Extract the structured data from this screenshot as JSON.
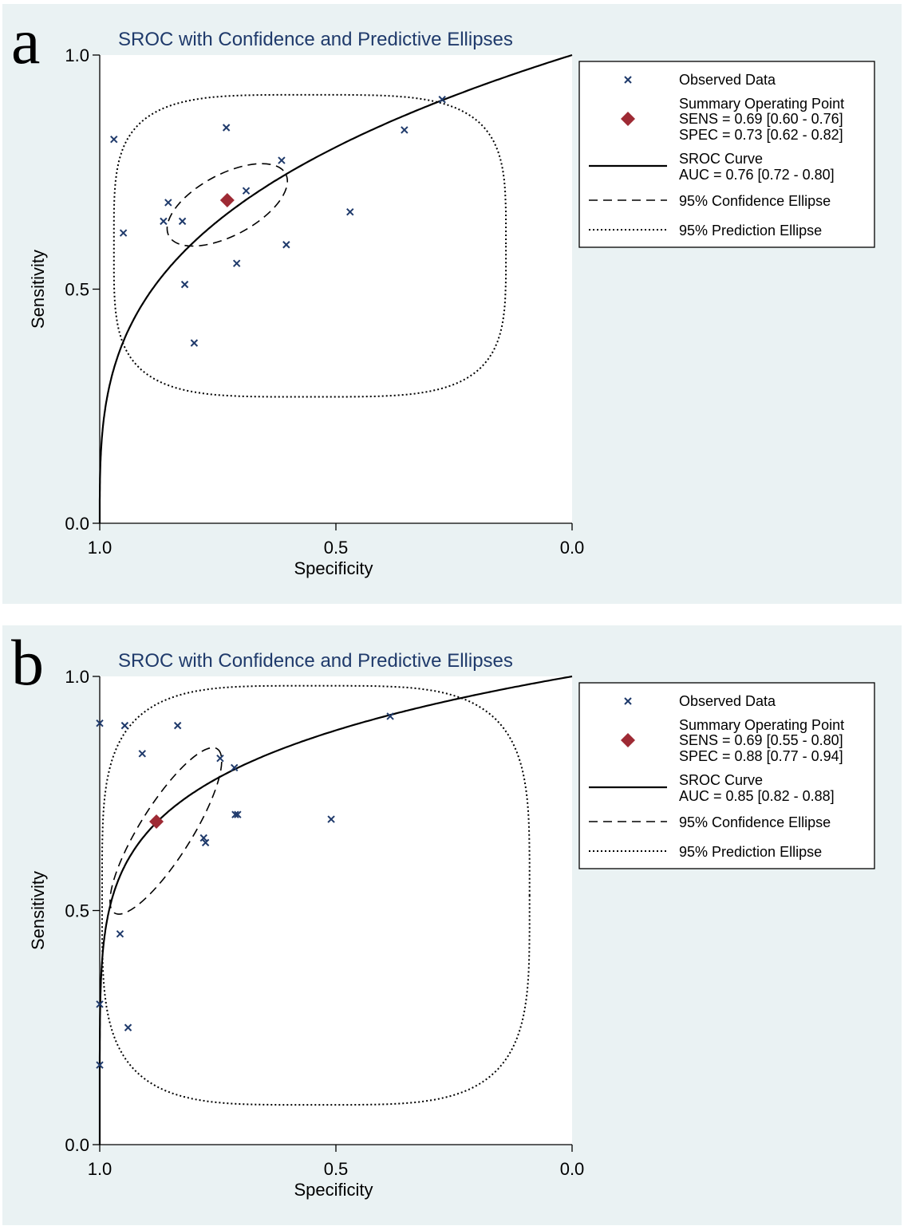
{
  "chart_data": [
    {
      "panel": "a",
      "type": "scatter",
      "title": "SROC with Confidence and Predictive Ellipses",
      "xlabel": "Specificity",
      "ylabel": "Sensitivity",
      "xlim": [
        1.0,
        0.0
      ],
      "ylim": [
        0.0,
        1.0
      ],
      "x_reversed": true,
      "xticks": [
        "1.0",
        "0.5",
        "0.0"
      ],
      "yticks": [
        "0.0",
        "0.5",
        "1.0"
      ],
      "legend_position": "right",
      "observed": [
        {
          "spec": 0.97,
          "sens": 0.82
        },
        {
          "spec": 0.95,
          "sens": 0.62
        },
        {
          "spec": 0.865,
          "sens": 0.645
        },
        {
          "spec": 0.855,
          "sens": 0.685
        },
        {
          "spec": 0.825,
          "sens": 0.645
        },
        {
          "spec": 0.82,
          "sens": 0.51
        },
        {
          "spec": 0.8,
          "sens": 0.385
        },
        {
          "spec": 0.732,
          "sens": 0.845
        },
        {
          "spec": 0.71,
          "sens": 0.555
        },
        {
          "spec": 0.69,
          "sens": 0.71
        },
        {
          "spec": 0.615,
          "sens": 0.775
        },
        {
          "spec": 0.605,
          "sens": 0.595
        },
        {
          "spec": 0.47,
          "sens": 0.665
        },
        {
          "spec": 0.355,
          "sens": 0.84
        },
        {
          "spec": 0.275,
          "sens": 0.905
        }
      ],
      "summary_point": {
        "spec": 0.73,
        "sens": 0.69
      },
      "auc_curve_param": 0.76,
      "confidence_ellipse": {
        "spec": 0.73,
        "sens": 0.68,
        "rx": 0.14,
        "ry": 0.065,
        "angle_deg": 28
      },
      "prediction_region": {
        "spec_range": [
          0.97,
          0.14
        ],
        "sens_range": [
          0.27,
          0.915
        ]
      },
      "legend": {
        "observed": "Observed Data",
        "summary_title": "Summary Operating Point",
        "summary_sens": "SENS = 0.69 [0.60 - 0.76]",
        "summary_spec": "SPEC = 0.73 [0.62 - 0.82]",
        "sroc_title": "SROC Curve",
        "sroc_auc": "AUC = 0.76 [0.72 - 0.80]",
        "confidence": "95% Confidence Ellipse",
        "prediction": "95% Prediction Ellipse"
      }
    },
    {
      "panel": "b",
      "type": "scatter",
      "title": "SROC with Confidence and Predictive Ellipses",
      "xlabel": "Specificity",
      "ylabel": "Sensitivity",
      "xlim": [
        1.0,
        0.0
      ],
      "ylim": [
        0.0,
        1.0
      ],
      "x_reversed": true,
      "xticks": [
        "1.0",
        "0.5",
        "0.0"
      ],
      "yticks": [
        "0.0",
        "0.5",
        "1.0"
      ],
      "legend_position": "right",
      "observed": [
        {
          "spec": 1.0,
          "sens": 0.9
        },
        {
          "spec": 0.947,
          "sens": 0.895
        },
        {
          "spec": 0.835,
          "sens": 0.895
        },
        {
          "spec": 0.91,
          "sens": 0.835
        },
        {
          "spec": 0.745,
          "sens": 0.825
        },
        {
          "spec": 0.715,
          "sens": 0.805
        },
        {
          "spec": 0.713,
          "sens": 0.705
        },
        {
          "spec": 0.708,
          "sens": 0.705
        },
        {
          "spec": 0.78,
          "sens": 0.655
        },
        {
          "spec": 0.776,
          "sens": 0.645
        },
        {
          "spec": 0.51,
          "sens": 0.695
        },
        {
          "spec": 0.385,
          "sens": 0.915
        },
        {
          "spec": 0.957,
          "sens": 0.45
        },
        {
          "spec": 1.0,
          "sens": 0.3
        },
        {
          "spec": 0.94,
          "sens": 0.25
        },
        {
          "spec": 1.0,
          "sens": 0.17
        }
      ],
      "summary_point": {
        "spec": 0.88,
        "sens": 0.69
      },
      "auc_curve_param": 0.85,
      "confidence_ellipse": {
        "spec": 0.86,
        "sens": 0.67,
        "rx": 0.205,
        "ry": 0.055,
        "angle_deg": 58
      },
      "prediction_region": {
        "spec_range": [
          0.995,
          0.09
        ],
        "sens_range": [
          0.085,
          0.98
        ]
      },
      "legend": {
        "observed": "Observed Data",
        "summary_title": "Summary Operating Point",
        "summary_sens": "SENS = 0.69 [0.55 - 0.80]",
        "summary_spec": "SPEC = 0.88 [0.77 - 0.94]",
        "sroc_title": "SROC Curve",
        "sroc_auc": "AUC = 0.85 [0.82 - 0.88]",
        "confidence": "95% Confidence Ellipse",
        "prediction": "95% Prediction Ellipse"
      }
    }
  ]
}
